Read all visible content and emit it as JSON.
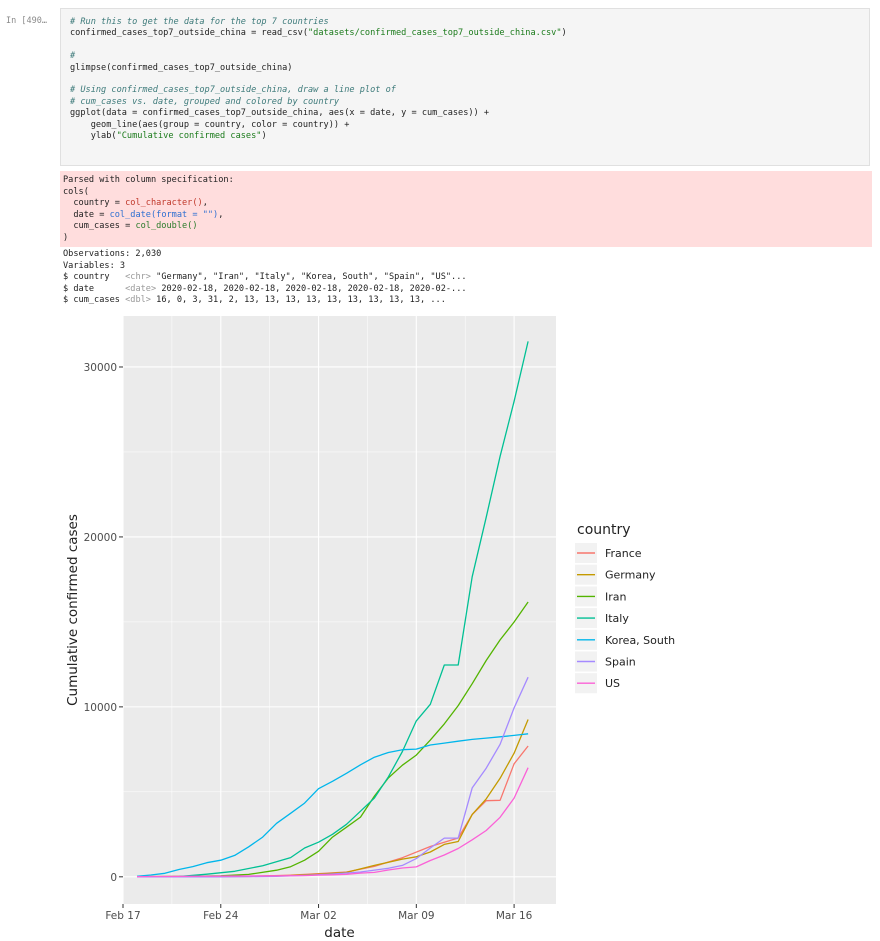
{
  "cell": {
    "prompt": "In [490…",
    "code_lines": [
      {
        "type": "comment",
        "text": "# Run this to get the data for the top 7 countries"
      },
      {
        "type": "code_str",
        "before": "confirmed_cases_top7_outside_china = read_csv(",
        "str": "\"datasets/confirmed_cases_top7_outside_china.csv\"",
        "after": ")"
      },
      {
        "type": "blank",
        "text": ""
      },
      {
        "type": "comment",
        "text": "#"
      },
      {
        "type": "code",
        "text": "glimpse(confirmed_cases_top7_outside_china)"
      },
      {
        "type": "blank",
        "text": ""
      },
      {
        "type": "comment",
        "text": "# Using confirmed_cases_top7_outside_china, draw a line plot of"
      },
      {
        "type": "comment",
        "text": "# cum_cases vs. date, grouped and colored by country"
      },
      {
        "type": "code",
        "text": "ggplot(data = confirmed_cases_top7_outside_china, aes(x = date, y = cum_cases)) +"
      },
      {
        "type": "code",
        "text": "    geom_line(aes(group = country, color = country)) +"
      },
      {
        "type": "code_str",
        "before": "    ylab(",
        "str": "\"Cumulative confirmed cases\"",
        "after": ")"
      }
    ]
  },
  "stderr": {
    "line1": "Parsed with column specification:",
    "line2": "cols(",
    "country_prefix": "  country = ",
    "country_type": "col_character()",
    "country_suffix": ",",
    "date_prefix": "  date = ",
    "date_type": "col_date(format = \"\")",
    "date_suffix": ",",
    "cum_prefix": "  cum_cases = ",
    "cum_type": "col_double()",
    "line6": ")"
  },
  "stdout": {
    "observations": "Observations: 2,030",
    "variables": "Variables: 3",
    "rows": [
      {
        "name": "$ country   ",
        "type": "<chr>",
        "values": " \"Germany\", \"Iran\", \"Italy\", \"Korea, South\", \"Spain\", \"US\"..."
      },
      {
        "name": "$ date      ",
        "type": "<date>",
        "values": " 2020-02-18, 2020-02-18, 2020-02-18, 2020-02-18, 2020-02-..."
      },
      {
        "name": "$ cum_cases ",
        "type": "<dbl>",
        "values": " 16, 0, 3, 31, 2, 13, 13, 13, 13, 13, 13, 13, 13, 13, ..."
      }
    ]
  },
  "chart_data": {
    "type": "line",
    "title": "",
    "xlabel": "date",
    "ylabel": "Cumulative confirmed cases",
    "xlim": [
      "2020-02-17",
      "2020-03-19"
    ],
    "ylim": [
      -1600,
      33000
    ],
    "x_ticks": [
      {
        "date": "2020-02-17",
        "label": "Feb 17"
      },
      {
        "date": "2020-02-24",
        "label": "Feb 24"
      },
      {
        "date": "2020-03-02",
        "label": "Mar 02"
      },
      {
        "date": "2020-03-09",
        "label": "Mar 09"
      },
      {
        "date": "2020-03-16",
        "label": "Mar 16"
      }
    ],
    "y_ticks": [
      0,
      10000,
      20000,
      30000
    ],
    "grid": true,
    "legend_title": "country",
    "legend_position": "right",
    "series": [
      {
        "name": "France",
        "color": "#F8766D",
        "points": [
          [
            "2020-02-18",
            12
          ],
          [
            "2020-02-22",
            12
          ],
          [
            "2020-02-26",
            18
          ],
          [
            "2020-02-29",
            100
          ],
          [
            "2020-03-02",
            191
          ],
          [
            "2020-03-04",
            285
          ],
          [
            "2020-03-06",
            613
          ],
          [
            "2020-03-08",
            1126
          ],
          [
            "2020-03-10",
            1784
          ],
          [
            "2020-03-12",
            2284
          ],
          [
            "2020-03-13",
            3667
          ],
          [
            "2020-03-14",
            4480
          ],
          [
            "2020-03-15",
            4500
          ],
          [
            "2020-03-16",
            6650
          ],
          [
            "2020-03-17",
            7700
          ]
        ]
      },
      {
        "name": "Germany",
        "color": "#C49A00",
        "points": [
          [
            "2020-02-18",
            16
          ],
          [
            "2020-02-24",
            16
          ],
          [
            "2020-02-27",
            46
          ],
          [
            "2020-02-29",
            79
          ],
          [
            "2020-03-02",
            159
          ],
          [
            "2020-03-04",
            262
          ],
          [
            "2020-03-06",
            670
          ],
          [
            "2020-03-08",
            1040
          ],
          [
            "2020-03-09",
            1176
          ],
          [
            "2020-03-10",
            1457
          ],
          [
            "2020-03-11",
            1908
          ],
          [
            "2020-03-12",
            2078
          ],
          [
            "2020-03-13",
            3675
          ],
          [
            "2020-03-14",
            4585
          ],
          [
            "2020-03-15",
            5795
          ],
          [
            "2020-03-16",
            7272
          ],
          [
            "2020-03-17",
            9257
          ]
        ]
      },
      {
        "name": "Iran",
        "color": "#53B400",
        "points": [
          [
            "2020-02-18",
            0
          ],
          [
            "2020-02-22",
            28
          ],
          [
            "2020-02-24",
            61
          ],
          [
            "2020-02-26",
            139
          ],
          [
            "2020-02-28",
            388
          ],
          [
            "2020-02-29",
            593
          ],
          [
            "2020-03-01",
            978
          ],
          [
            "2020-03-02",
            1501
          ],
          [
            "2020-03-03",
            2336
          ],
          [
            "2020-03-04",
            2922
          ],
          [
            "2020-03-05",
            3513
          ],
          [
            "2020-03-06",
            4747
          ],
          [
            "2020-03-07",
            5823
          ],
          [
            "2020-03-08",
            6566
          ],
          [
            "2020-03-09",
            7161
          ],
          [
            "2020-03-10",
            8042
          ],
          [
            "2020-03-11",
            9000
          ],
          [
            "2020-03-12",
            10075
          ],
          [
            "2020-03-13",
            11364
          ],
          [
            "2020-03-14",
            12729
          ],
          [
            "2020-03-15",
            13938
          ],
          [
            "2020-03-16",
            14991
          ],
          [
            "2020-03-17",
            16169
          ]
        ]
      },
      {
        "name": "Italy",
        "color": "#00C094",
        "points": [
          [
            "2020-02-18",
            3
          ],
          [
            "2020-02-21",
            20
          ],
          [
            "2020-02-23",
            155
          ],
          [
            "2020-02-25",
            322
          ],
          [
            "2020-02-27",
            655
          ],
          [
            "2020-02-29",
            1128
          ],
          [
            "2020-03-01",
            1694
          ],
          [
            "2020-03-02",
            2036
          ],
          [
            "2020-03-03",
            2502
          ],
          [
            "2020-03-04",
            3089
          ],
          [
            "2020-03-05",
            3858
          ],
          [
            "2020-03-06",
            4636
          ],
          [
            "2020-03-07",
            5883
          ],
          [
            "2020-03-08",
            7375
          ],
          [
            "2020-03-09",
            9172
          ],
          [
            "2020-03-10",
            10149
          ],
          [
            "2020-03-11",
            12462
          ],
          [
            "2020-03-12",
            12462
          ],
          [
            "2020-03-13",
            17660
          ],
          [
            "2020-03-14",
            21157
          ],
          [
            "2020-03-15",
            24747
          ],
          [
            "2020-03-16",
            27980
          ],
          [
            "2020-03-17",
            31506
          ]
        ]
      },
      {
        "name": "Korea, South",
        "color": "#00B6EB",
        "points": [
          [
            "2020-02-18",
            31
          ],
          [
            "2020-02-19",
            104
          ],
          [
            "2020-02-20",
            204
          ],
          [
            "2020-02-21",
            433
          ],
          [
            "2020-02-22",
            602
          ],
          [
            "2020-02-23",
            833
          ],
          [
            "2020-02-24",
            977
          ],
          [
            "2020-02-25",
            1261
          ],
          [
            "2020-02-26",
            1766
          ],
          [
            "2020-02-27",
            2337
          ],
          [
            "2020-02-28",
            3150
          ],
          [
            "2020-02-29",
            3736
          ],
          [
            "2020-03-01",
            4335
          ],
          [
            "2020-03-02",
            5186
          ],
          [
            "2020-03-03",
            5621
          ],
          [
            "2020-03-04",
            6088
          ],
          [
            "2020-03-05",
            6593
          ],
          [
            "2020-03-06",
            7041
          ],
          [
            "2020-03-07",
            7314
          ],
          [
            "2020-03-08",
            7478
          ],
          [
            "2020-03-09",
            7513
          ],
          [
            "2020-03-10",
            7755
          ],
          [
            "2020-03-11",
            7869
          ],
          [
            "2020-03-12",
            7979
          ],
          [
            "2020-03-13",
            8086
          ],
          [
            "2020-03-14",
            8162
          ],
          [
            "2020-03-15",
            8236
          ],
          [
            "2020-03-16",
            8320
          ],
          [
            "2020-03-17",
            8413
          ]
        ]
      },
      {
        "name": "Spain",
        "color": "#A58AFF",
        "points": [
          [
            "2020-02-18",
            2
          ],
          [
            "2020-02-24",
            2
          ],
          [
            "2020-02-26",
            13
          ],
          [
            "2020-02-28",
            32
          ],
          [
            "2020-03-01",
            84
          ],
          [
            "2020-03-03",
            165
          ],
          [
            "2020-03-05",
            282
          ],
          [
            "2020-03-07",
            500
          ],
          [
            "2020-03-08",
            673
          ],
          [
            "2020-03-09",
            1073
          ],
          [
            "2020-03-10",
            1695
          ],
          [
            "2020-03-11",
            2277
          ],
          [
            "2020-03-12",
            2277
          ],
          [
            "2020-03-13",
            5232
          ],
          [
            "2020-03-14",
            6391
          ],
          [
            "2020-03-15",
            7798
          ],
          [
            "2020-03-16",
            9942
          ],
          [
            "2020-03-17",
            11748
          ]
        ]
      },
      {
        "name": "US",
        "color": "#FB61D7",
        "points": [
          [
            "2020-02-18",
            13
          ],
          [
            "2020-02-28",
            60
          ],
          [
            "2020-03-01",
            74
          ],
          [
            "2020-03-02",
            98
          ],
          [
            "2020-03-03",
            118
          ],
          [
            "2020-03-04",
            149
          ],
          [
            "2020-03-05",
            217
          ],
          [
            "2020-03-06",
            262
          ],
          [
            "2020-03-07",
            402
          ],
          [
            "2020-03-08",
            518
          ],
          [
            "2020-03-09",
            583
          ],
          [
            "2020-03-10",
            959
          ],
          [
            "2020-03-11",
            1281
          ],
          [
            "2020-03-12",
            1663
          ],
          [
            "2020-03-13",
            2179
          ],
          [
            "2020-03-14",
            2726
          ],
          [
            "2020-03-15",
            3499
          ],
          [
            "2020-03-16",
            4632
          ],
          [
            "2020-03-17",
            6421
          ]
        ]
      }
    ]
  }
}
